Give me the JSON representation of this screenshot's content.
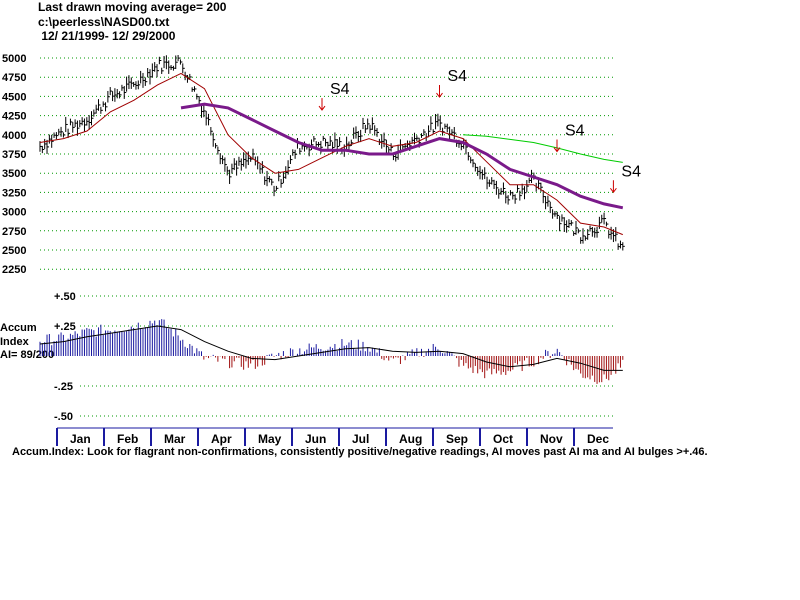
{
  "header": {
    "line1": "Last drawn moving average= 200",
    "line2": "c:\\peerless\\NASD00.txt",
    "line3": " 12/ 21/1999- 12/ 29/2000"
  },
  "price_chart": {
    "y_ticks": [
      5000,
      4750,
      4500,
      4250,
      4000,
      3750,
      3500,
      3250,
      3000,
      2750,
      2500,
      2250
    ],
    "y_tick_labels": [
      "5000",
      "4750",
      "4500",
      "4250",
      "4000",
      "3750",
      "3500",
      "3250",
      "3000",
      "2750",
      "2500",
      "2250"
    ],
    "signals": [
      {
        "label": "S4",
        "x": 6.0,
        "y": 4400
      },
      {
        "label": "S4",
        "x": 8.5,
        "y": 4570
      },
      {
        "label": "S4",
        "x": 11.0,
        "y": 3860
      },
      {
        "label": "S4",
        "x": 12.2,
        "y": 3330
      }
    ],
    "colors": {
      "bars": "#000000",
      "ma21": "#a00000",
      "ma50": "#7a1a8a",
      "ma200": "#00cc00",
      "grid": "#009900",
      "signal": "#cc0000"
    }
  },
  "accum_chart": {
    "label_line1": "Accum",
    "label_line2": "Index",
    "label_line3": "AI= 89/200",
    "y_ticks": [
      0.5,
      0.25,
      -0.25,
      -0.5
    ],
    "y_tick_labels": [
      "+.50",
      "+.25",
      "-.25",
      "-.50"
    ],
    "colors": {
      "positive": "#1a1aa0",
      "negative": "#a01010",
      "ma": "#000000"
    }
  },
  "months": [
    "Jan",
    "Feb",
    "Mar",
    "Apr",
    "May",
    "Jun",
    "Jul",
    "Aug",
    "Sep",
    "Oct",
    "Nov",
    "Dec"
  ],
  "footer": "Accum.Index: Look for flagrant non-confirmations, consistently positive/negative readings, AI moves past AI ma and AI bulges >+.46.",
  "chart_data": {
    "type": "line",
    "title": "Last drawn moving average= 200",
    "ylim": [
      2250,
      5150
    ],
    "x": [
      0.0,
      0.5,
      1.0,
      1.5,
      2.0,
      2.5,
      3.0,
      3.5,
      4.0,
      4.5,
      5.0,
      5.5,
      6.0,
      6.5,
      7.0,
      7.5,
      8.0,
      8.5,
      9.0,
      9.5,
      10.0,
      10.5,
      11.0,
      11.5,
      12.0,
      12.4
    ],
    "series": [
      {
        "values": [
          3850,
          4050,
          4200,
          4500,
          4650,
          4900,
          4950,
          4300,
          3500,
          3700,
          3300,
          3850,
          3900,
          3850,
          4150,
          3750,
          3950,
          4150,
          3900,
          3400,
          3200,
          3400,
          2950,
          2700,
          2850,
          2500
        ]
      },
      {
        "values": [
          3900,
          3950,
          4050,
          4300,
          4450,
          4650,
          4800,
          4600,
          4000,
          3700,
          3500,
          3550,
          3700,
          3850,
          3950,
          3850,
          3900,
          4050,
          3950,
          3650,
          3350,
          3350,
          3150,
          2850,
          2800,
          2700
        ]
      },
      {
        "values": [
          null,
          null,
          null,
          null,
          null,
          null,
          4350,
          4400,
          4350,
          4200,
          4050,
          3900,
          3800,
          3800,
          3750,
          3750,
          3850,
          3950,
          3900,
          3750,
          3550,
          3450,
          3350,
          3200,
          3100,
          3050
        ]
      },
      {
        "values": [
          null,
          null,
          null,
          null,
          null,
          null,
          null,
          null,
          null,
          null,
          null,
          null,
          null,
          null,
          null,
          null,
          null,
          null,
          4000,
          3980,
          3940,
          3900,
          3830,
          3750,
          3680,
          3640
        ]
      }
    ],
    "accum_index": {
      "x": [
        0.0,
        0.5,
        1.0,
        1.5,
        2.0,
        2.5,
        3.0,
        3.5,
        4.0,
        4.5,
        5.0,
        5.5,
        6.0,
        6.5,
        7.0,
        7.5,
        8.0,
        8.5,
        9.0,
        9.5,
        10.0,
        10.5,
        11.0,
        11.5,
        12.0,
        12.4
      ],
      "values": [
        0.13,
        0.15,
        0.2,
        0.22,
        0.25,
        0.3,
        0.15,
        -0.02,
        -0.05,
        -0.08,
        0.0,
        0.05,
        0.08,
        0.1,
        0.08,
        -0.05,
        0.02,
        0.08,
        -0.08,
        -0.15,
        -0.12,
        -0.04,
        0.05,
        -0.15,
        -0.2,
        -0.08
      ],
      "ma": [
        0.1,
        0.12,
        0.16,
        0.19,
        0.22,
        0.25,
        0.22,
        0.12,
        0.04,
        -0.02,
        -0.03,
        0.0,
        0.03,
        0.06,
        0.07,
        0.04,
        0.03,
        0.04,
        0.02,
        -0.05,
        -0.09,
        -0.07,
        -0.02,
        -0.06,
        -0.12,
        -0.12
      ],
      "ylim": [
        -0.55,
        0.55
      ]
    }
  }
}
